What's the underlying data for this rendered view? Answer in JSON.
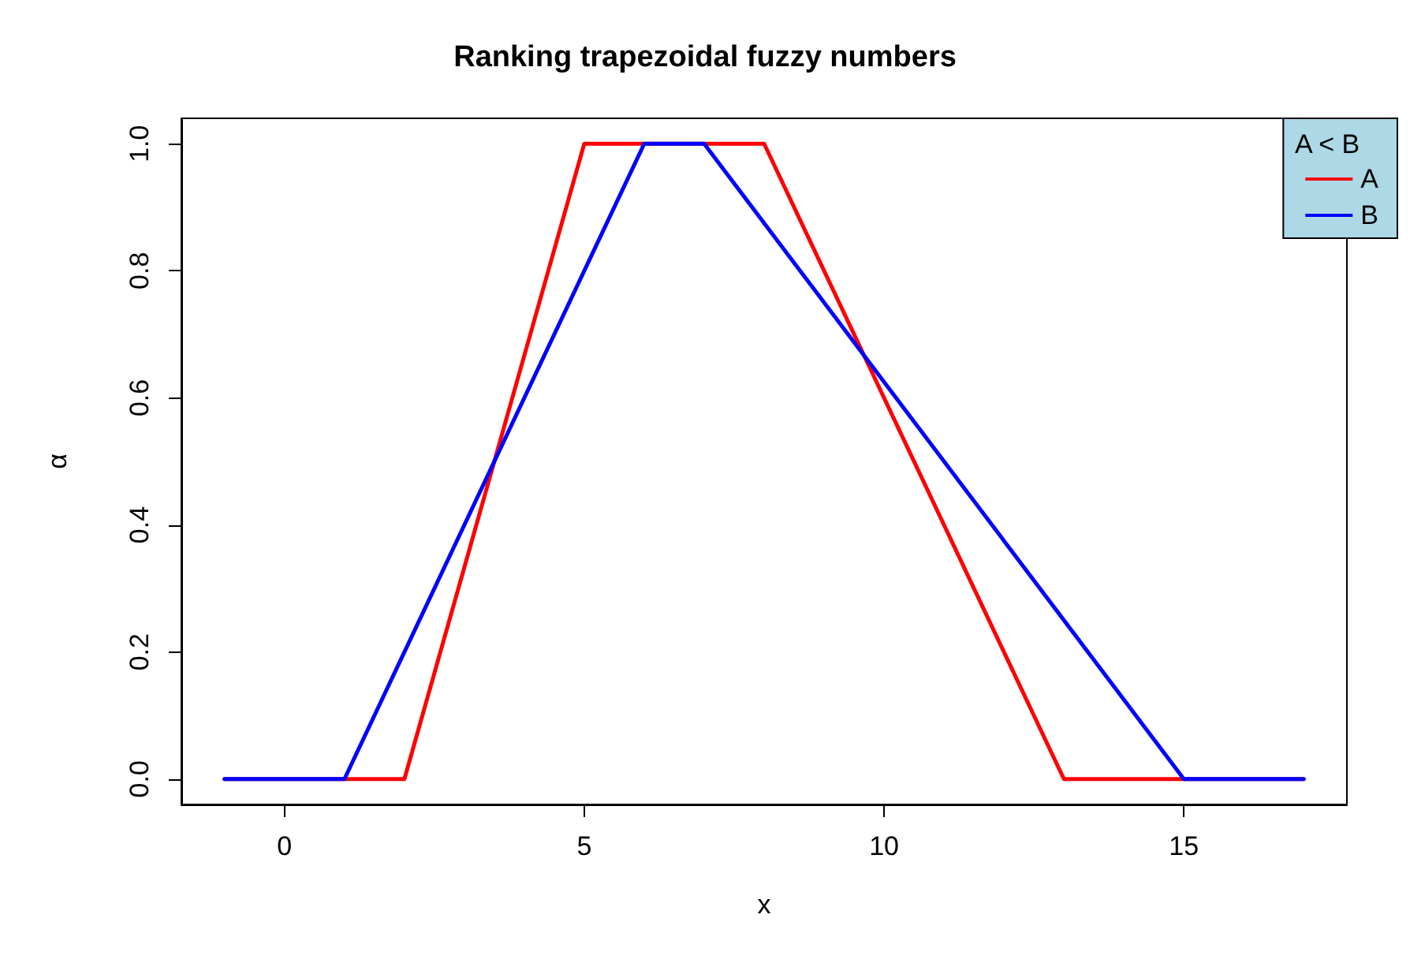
{
  "chart_data": {
    "type": "line",
    "title": "Ranking trapezoidal fuzzy numbers",
    "xlabel": "x",
    "ylabel": "α",
    "legend_title": "A < B",
    "series": [
      {
        "name": "A",
        "color": "#ff0000",
        "x": [
          -1,
          2,
          5,
          8,
          13,
          17
        ],
        "values": [
          0,
          0,
          1,
          1,
          0,
          0
        ]
      },
      {
        "name": "B",
        "color": "#0000ff",
        "x": [
          -1,
          1,
          6,
          7,
          15,
          17
        ],
        "values": [
          0,
          0,
          1,
          1,
          0,
          0
        ]
      }
    ],
    "xlim": [
      -1.72,
      17.72
    ],
    "xticks": [
      0,
      5,
      10,
      15
    ],
    "ylim": [
      -0.04,
      1.04
    ],
    "yticks": [
      {
        "value": 0,
        "label": "0.0"
      },
      0.2,
      0.4,
      0.6,
      0.8,
      {
        "value": 1,
        "label": "1.0"
      }
    ],
    "grid": false,
    "legend": "top right",
    "marker": "none",
    "line_style": "solid"
  }
}
